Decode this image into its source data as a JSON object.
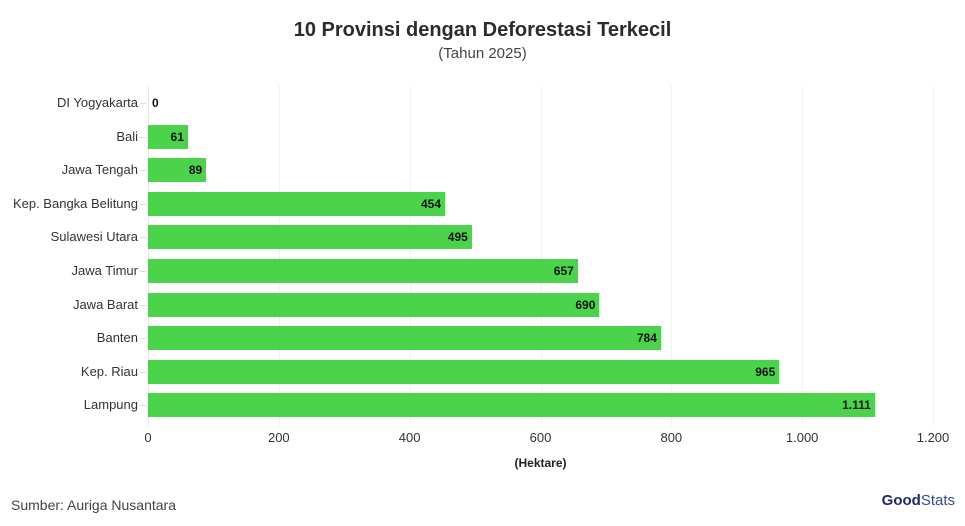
{
  "header": {
    "title": "10 Provinsi dengan Deforestasi Terkecil",
    "subtitle": "(Tahun 2025)"
  },
  "footer": {
    "source": "Sumber: Auriga Nusantara",
    "logo_bold": "Good",
    "logo_light": "Stats"
  },
  "colors": {
    "bar": "#4cd34c"
  },
  "chart_data": {
    "type": "bar",
    "orientation": "horizontal",
    "title": "10 Provinsi dengan Deforestasi Terkecil",
    "subtitle": "(Tahun 2025)",
    "xlabel": "(Hektare)",
    "ylabel": "",
    "xlim": [
      0,
      1200
    ],
    "grid": true,
    "categories": [
      "DI Yogyakarta",
      "Bali",
      "Jawa Tengah",
      "Kep. Bangka Belitung",
      "Sulawesi Utara",
      "Jawa Timur",
      "Jawa Barat",
      "Banten",
      "Kep. Riau",
      "Lampung"
    ],
    "values": [
      0,
      61,
      89,
      454,
      495,
      657,
      690,
      784,
      965,
      1111
    ],
    "value_labels": [
      "0",
      "61",
      "89",
      "454",
      "495",
      "657",
      "690",
      "784",
      "965",
      "1.111"
    ],
    "x_ticks": [
      "0",
      "200",
      "400",
      "600",
      "800",
      "1.000",
      "1.200"
    ],
    "x_tick_values": [
      0,
      200,
      400,
      600,
      800,
      1000,
      1200
    ]
  }
}
